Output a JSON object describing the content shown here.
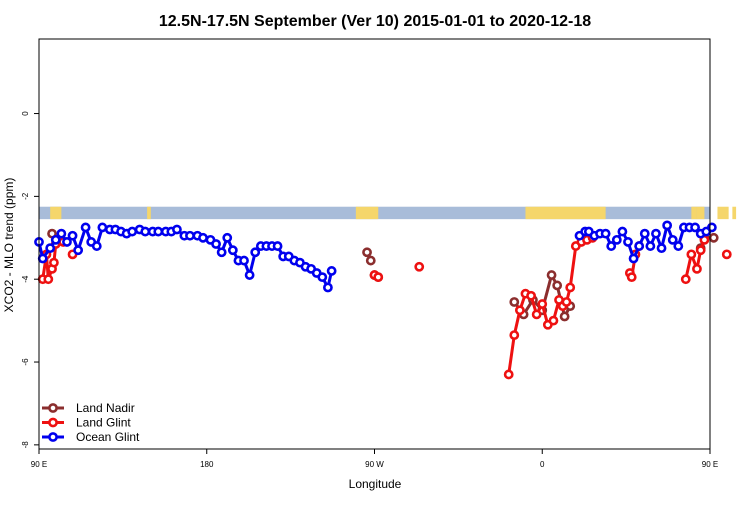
{
  "chart_data": {
    "type": "line",
    "title": "12.5N-17.5N September (Ver 10)   2015-01-01 to 2020-12-18",
    "xlabel": "Longitude",
    "ylabel": "XCO2 - MLO trend (ppm)",
    "xlim": [
      90,
      450
    ],
    "ylim": [
      -8.1,
      1.8
    ],
    "x_ticks": [
      {
        "value": 90,
        "label": "90 E"
      },
      {
        "value": 180,
        "label": "180"
      },
      {
        "value": 270,
        "label": "90 W"
      },
      {
        "value": 360,
        "label": "0"
      },
      {
        "value": 450,
        "label": "90 E"
      }
    ],
    "y_ticks": [
      {
        "value": 0,
        "label": "0"
      },
      {
        "value": -2,
        "label": "-2"
      },
      {
        "value": -4,
        "label": "-4"
      },
      {
        "value": -6,
        "label": "-6"
      },
      {
        "value": -8,
        "label": "-8"
      }
    ],
    "land_sea_band": {
      "y_range": [
        -2.55,
        -2.25
      ],
      "ocean_color": "#a8bcd9",
      "land_color": "#f5d66b",
      "land_segments": [
        [
          96,
          102
        ],
        [
          148,
          150
        ],
        [
          260,
          272
        ],
        [
          351,
          394
        ],
        [
          440,
          443
        ],
        [
          443,
          447
        ],
        [
          454,
          460
        ],
        [
          462,
          464
        ]
      ]
    },
    "legend": {
      "position": "bottom-left",
      "entries": [
        {
          "label": "Land Nadir",
          "color": "#8b2e2e"
        },
        {
          "label": "Land Glint",
          "color": "#ee1111"
        },
        {
          "label": "Ocean Glint",
          "color": "#0000ee"
        }
      ]
    },
    "series": [
      {
        "name": "Land Nadir",
        "color": "#8b2e2e",
        "segments": [
          [
            [
              97,
              -2.9
            ],
            [
              100,
              -3.05
            ]
          ],
          [
            [
              266,
              -3.35
            ],
            [
              268,
              -3.55
            ]
          ],
          [
            [
              270,
              -3.9
            ],
            [
              272,
              -3.95
            ]
          ],
          [
            [
              345,
              -4.55
            ],
            [
              350,
              -4.85
            ],
            [
              355,
              -4.5
            ],
            [
              360,
              -4.75
            ],
            [
              365,
              -3.9
            ],
            [
              368,
              -4.15
            ],
            [
              372,
              -4.9
            ],
            [
              375,
              -4.65
            ]
          ],
          [
            [
              445,
              -3.25
            ],
            [
              447,
              -3.0
            ]
          ],
          [
            [
              452,
              -3.0
            ]
          ]
        ]
      },
      {
        "name": "Land Glint",
        "color": "#ee1111",
        "segments": [
          [
            [
              92,
              -4.0
            ],
            [
              94,
              -3.4
            ],
            [
              95,
              -4.0
            ],
            [
              97,
              -3.75
            ],
            [
              98,
              -3.6
            ],
            [
              99,
              -3.15
            ],
            [
              101,
              -3.05
            ],
            [
              103,
              -3.1
            ]
          ],
          [
            [
              108,
              -3.4
            ]
          ],
          [
            [
              270,
              -3.9
            ],
            [
              272,
              -3.95
            ]
          ],
          [
            [
              294,
              -3.7
            ]
          ],
          [
            [
              342,
              -6.3
            ],
            [
              345,
              -5.35
            ],
            [
              348,
              -4.75
            ],
            [
              351,
              -4.35
            ],
            [
              354,
              -4.4
            ],
            [
              357,
              -4.85
            ],
            [
              360,
              -4.6
            ],
            [
              363,
              -5.1
            ],
            [
              366,
              -5.0
            ],
            [
              369,
              -4.5
            ],
            [
              371,
              -4.65
            ],
            [
              373,
              -4.55
            ],
            [
              375,
              -4.2
            ],
            [
              378,
              -3.2
            ],
            [
              381,
              -3.1
            ],
            [
              384,
              -3.05
            ],
            [
              387,
              -3.0
            ]
          ],
          [
            [
              407,
              -3.85
            ],
            [
              408,
              -3.95
            ],
            [
              410,
              -3.4
            ],
            [
              412,
              -3.2
            ]
          ],
          [
            [
              437,
              -4.0
            ],
            [
              440,
              -3.4
            ],
            [
              443,
              -3.75
            ],
            [
              445,
              -3.3
            ],
            [
              447,
              -3.05
            ]
          ],
          [
            [
              459,
              -3.4
            ]
          ]
        ]
      },
      {
        "name": "Ocean Glint",
        "color": "#0000ee",
        "segments": [
          [
            [
              90,
              -3.1
            ],
            [
              92,
              -3.5
            ],
            [
              96,
              -3.25
            ],
            [
              99,
              -3.05
            ],
            [
              102,
              -2.9
            ],
            [
              105,
              -3.1
            ],
            [
              108,
              -2.95
            ],
            [
              111,
              -3.3
            ],
            [
              115,
              -2.75
            ],
            [
              118,
              -3.1
            ],
            [
              121,
              -3.2
            ],
            [
              124,
              -2.75
            ],
            [
              128,
              -2.8
            ],
            [
              131,
              -2.8
            ],
            [
              134,
              -2.85
            ],
            [
              137,
              -2.9
            ],
            [
              140,
              -2.85
            ],
            [
              144,
              -2.8
            ],
            [
              147,
              -2.85
            ],
            [
              151,
              -2.85
            ],
            [
              154,
              -2.85
            ],
            [
              158,
              -2.85
            ],
            [
              161,
              -2.85
            ],
            [
              164,
              -2.8
            ],
            [
              168,
              -2.95
            ],
            [
              171,
              -2.95
            ],
            [
              175,
              -2.95
            ],
            [
              178,
              -3.0
            ],
            [
              182,
              -3.05
            ],
            [
              185,
              -3.15
            ],
            [
              188,
              -3.35
            ],
            [
              191,
              -3.0
            ],
            [
              194,
              -3.3
            ],
            [
              197,
              -3.55
            ],
            [
              200,
              -3.55
            ],
            [
              203,
              -3.9
            ],
            [
              206,
              -3.35
            ],
            [
              209,
              -3.2
            ],
            [
              212,
              -3.2
            ],
            [
              215,
              -3.2
            ],
            [
              218,
              -3.2
            ],
            [
              221,
              -3.45
            ],
            [
              224,
              -3.45
            ],
            [
              227,
              -3.55
            ],
            [
              230,
              -3.6
            ],
            [
              233,
              -3.7
            ],
            [
              236,
              -3.75
            ],
            [
              239,
              -3.85
            ],
            [
              242,
              -3.95
            ],
            [
              245,
              -4.2
            ],
            [
              247,
              -3.8
            ]
          ],
          [
            [
              380,
              -2.95
            ],
            [
              383,
              -2.85
            ],
            [
              385,
              -2.85
            ],
            [
              388,
              -2.95
            ],
            [
              391,
              -2.9
            ],
            [
              394,
              -2.9
            ],
            [
              397,
              -3.2
            ],
            [
              400,
              -3.05
            ],
            [
              403,
              -2.85
            ],
            [
              406,
              -3.1
            ],
            [
              409,
              -3.5
            ],
            [
              412,
              -3.2
            ],
            [
              415,
              -2.9
            ],
            [
              418,
              -3.2
            ],
            [
              421,
              -2.9
            ],
            [
              424,
              -3.25
            ],
            [
              427,
              -2.7
            ],
            [
              430,
              -3.05
            ],
            [
              433,
              -3.2
            ],
            [
              436,
              -2.75
            ],
            [
              439,
              -2.75
            ],
            [
              442,
              -2.75
            ],
            [
              445,
              -2.9
            ],
            [
              448,
              -2.85
            ],
            [
              451,
              -2.75
            ]
          ]
        ]
      }
    ]
  }
}
